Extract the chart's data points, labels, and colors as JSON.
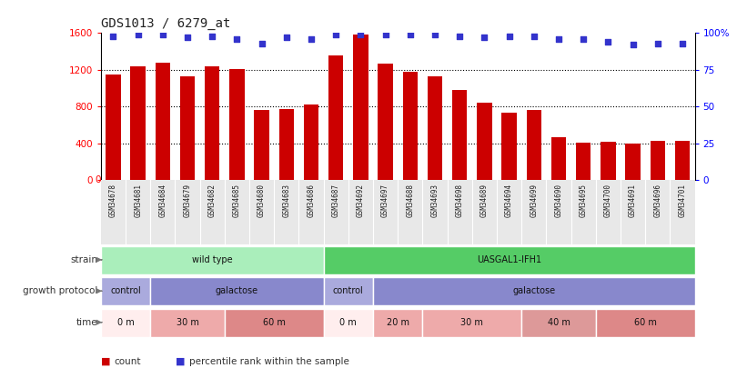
{
  "title": "GDS1013 / 6279_at",
  "samples": [
    "GSM34678",
    "GSM34681",
    "GSM34684",
    "GSM34679",
    "GSM34682",
    "GSM34685",
    "GSM34680",
    "GSM34683",
    "GSM34686",
    "GSM34687",
    "GSM34692",
    "GSM34697",
    "GSM34688",
    "GSM34693",
    "GSM34698",
    "GSM34689",
    "GSM34694",
    "GSM34699",
    "GSM34690",
    "GSM34695",
    "GSM34700",
    "GSM34691",
    "GSM34696",
    "GSM34701"
  ],
  "counts": [
    1150,
    1240,
    1280,
    1130,
    1240,
    1210,
    760,
    770,
    820,
    1360,
    1580,
    1270,
    1175,
    1130,
    980,
    840,
    740,
    760,
    470,
    410,
    420,
    400,
    430,
    430
  ],
  "percentile_ranks": [
    98,
    99,
    99,
    97,
    98,
    96,
    93,
    97,
    96,
    99,
    99,
    99,
    99,
    99,
    98,
    97,
    98,
    98,
    96,
    96,
    94,
    92,
    93,
    93
  ],
  "bar_color": "#cc0000",
  "dot_color": "#3333cc",
  "ylim_left": [
    0,
    1600
  ],
  "ylim_right": [
    0,
    100
  ],
  "yticks_left": [
    0,
    400,
    800,
    1200,
    1600
  ],
  "yticks_right": [
    0,
    25,
    50,
    75,
    100
  ],
  "ytick_labels_right": [
    "0",
    "25",
    "50",
    "75",
    "100%"
  ],
  "strain_groups": [
    {
      "label": "wild type",
      "start": 0,
      "end": 9,
      "color": "#aaeebb"
    },
    {
      "label": "UASGAL1-IFH1",
      "start": 9,
      "end": 24,
      "color": "#55cc66"
    }
  ],
  "growth_protocol_groups": [
    {
      "label": "control",
      "start": 0,
      "end": 2,
      "color": "#aaaadd"
    },
    {
      "label": "galactose",
      "start": 2,
      "end": 9,
      "color": "#8888cc"
    },
    {
      "label": "control",
      "start": 9,
      "end": 11,
      "color": "#aaaadd"
    },
    {
      "label": "galactose",
      "start": 11,
      "end": 24,
      "color": "#8888cc"
    }
  ],
  "time_groups": [
    {
      "label": "0 m",
      "start": 0,
      "end": 2,
      "color": "#ffeeee"
    },
    {
      "label": "30 m",
      "start": 2,
      "end": 5,
      "color": "#eeaaaa"
    },
    {
      "label": "60 m",
      "start": 5,
      "end": 9,
      "color": "#dd8888"
    },
    {
      "label": "0 m",
      "start": 9,
      "end": 11,
      "color": "#ffeeee"
    },
    {
      "label": "20 m",
      "start": 11,
      "end": 13,
      "color": "#eeaaaa"
    },
    {
      "label": "30 m",
      "start": 13,
      "end": 17,
      "color": "#eeaaaa"
    },
    {
      "label": "40 m",
      "start": 17,
      "end": 20,
      "color": "#dd9999"
    },
    {
      "label": "60 m",
      "start": 20,
      "end": 24,
      "color": "#dd8888"
    }
  ],
  "legend_items": [
    {
      "label": "count",
      "color": "#cc0000"
    },
    {
      "label": "percentile rank within the sample",
      "color": "#3333cc"
    }
  ],
  "row_labels": [
    "strain",
    "growth protocol",
    "time"
  ],
  "row_label_color": "#333333"
}
